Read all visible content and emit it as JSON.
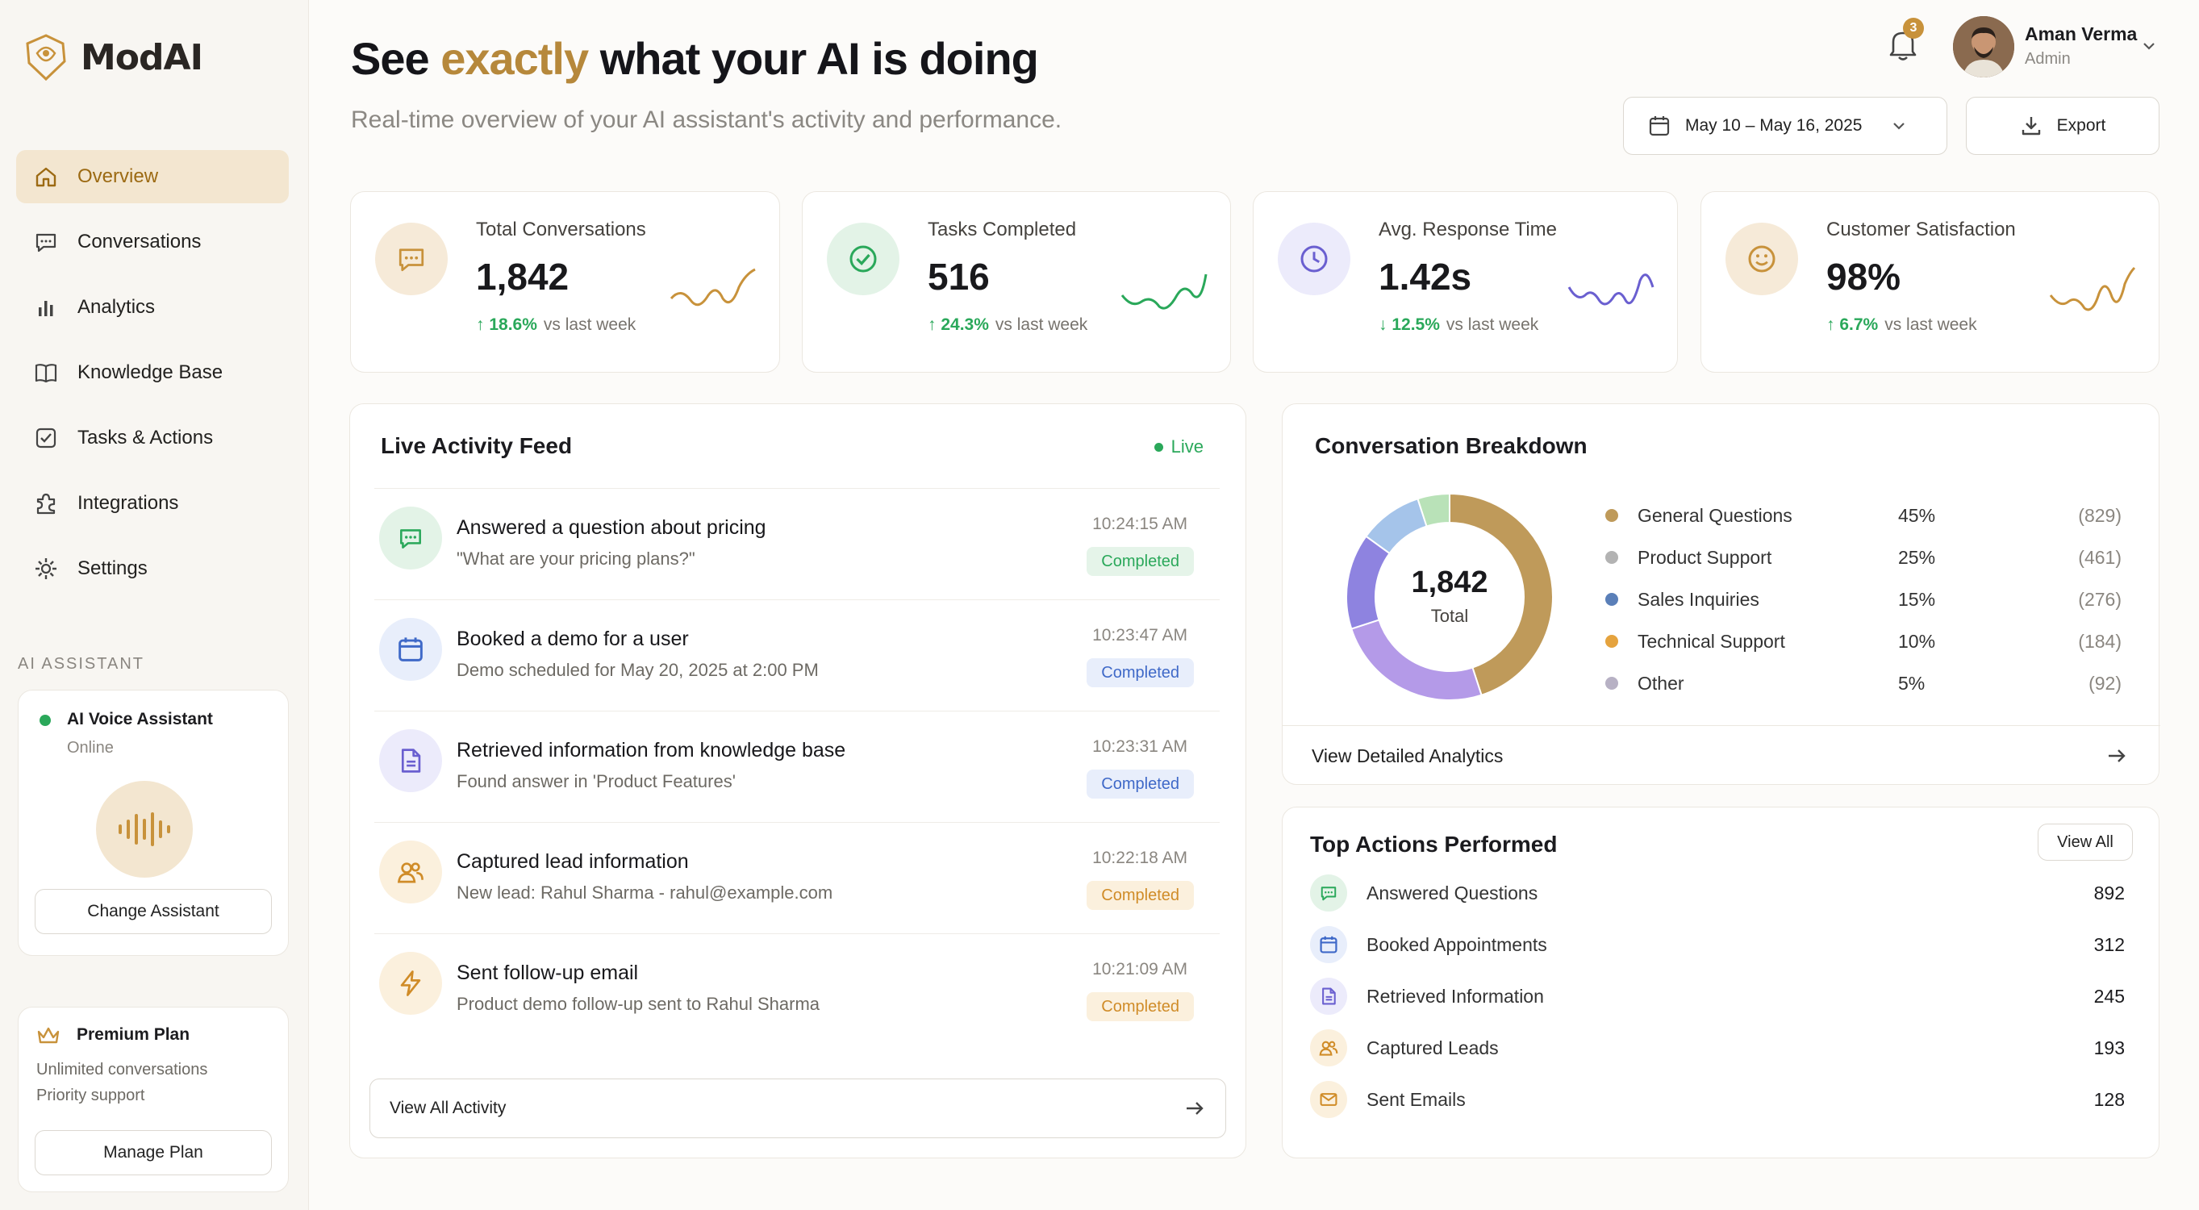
{
  "app": {
    "name": "ModAI"
  },
  "sidebar": {
    "items": [
      {
        "label": "Overview"
      },
      {
        "label": "Conversations"
      },
      {
        "label": "Analytics"
      },
      {
        "label": "Knowledge Base"
      },
      {
        "label": "Tasks & Actions"
      },
      {
        "label": "Integrations"
      },
      {
        "label": "Settings"
      }
    ],
    "active": "Overview",
    "section_title": "AI ASSISTANT",
    "assistant": {
      "name": "AI Voice Assistant",
      "status": "Online",
      "change_label": "Change Assistant"
    },
    "plan": {
      "name": "Premium Plan",
      "features": [
        "Unlimited conversations",
        "Priority support"
      ],
      "manage_label": "Manage Plan"
    }
  },
  "header": {
    "title_before": "See ",
    "title_accent": "exactly",
    "title_after": " what your AI is doing",
    "subtitle": "Real-time overview of your AI assistant's activity and performance.",
    "notifications": "3",
    "user": {
      "name": "Aman Verma",
      "role": "Admin"
    },
    "date_range": "May 10 – May 16, 2025",
    "export_label": "Export"
  },
  "stats": [
    {
      "label": "Total Conversations",
      "value": "1,842",
      "change": "18.6%",
      "direction": "up",
      "vs": "vs last week",
      "color": "#c8923b"
    },
    {
      "label": "Tasks Completed",
      "value": "516",
      "change": "24.3%",
      "direction": "up",
      "vs": "vs last week",
      "color": "#2aa85a"
    },
    {
      "label": "Avg. Response Time",
      "value": "1.42s",
      "change": "12.5%",
      "direction": "down",
      "vs": "vs last week",
      "color": "#6a5fd0"
    },
    {
      "label": "Customer Satisfaction",
      "value": "98%",
      "change": "6.7%",
      "direction": "up",
      "vs": "vs last week",
      "color": "#c8923b"
    }
  ],
  "feed": {
    "title": "Live Activity Feed",
    "live_label": "Live",
    "items": [
      {
        "title": "Answered a question about pricing",
        "desc": "\"What are your pricing plans?\"",
        "time": "10:24:15 AM",
        "status": "Completed",
        "icon": "chat-icon"
      },
      {
        "title": "Booked a demo for a user",
        "desc": "Demo scheduled for May 20, 2025 at 2:00 PM",
        "time": "10:23:47 AM",
        "status": "Completed",
        "icon": "calendar-icon"
      },
      {
        "title": "Retrieved information from knowledge base",
        "desc": "Found answer in 'Product Features'",
        "time": "10:23:31 AM",
        "status": "Completed",
        "icon": "document-icon"
      },
      {
        "title": "Captured lead information",
        "desc": "New lead: Rahul Sharma - rahul@example.com",
        "time": "10:22:18 AM",
        "status": "Completed",
        "icon": "users-icon"
      },
      {
        "title": "Sent follow-up email",
        "desc": "Product demo follow-up sent to Rahul Sharma",
        "time": "10:21:09 AM",
        "status": "Completed",
        "icon": "bolt-icon"
      }
    ],
    "view_all_label": "View All Activity"
  },
  "breakdown": {
    "title": "Conversation Breakdown",
    "total": "1,842",
    "total_label": "Total",
    "view_label": "View Detailed Analytics"
  },
  "chart_data": {
    "type": "pie",
    "categories": [
      "General Questions",
      "Product Support",
      "Sales Inquiries",
      "Technical Support",
      "Other"
    ],
    "values": [
      45,
      25,
      15,
      10,
      5
    ],
    "counts": [
      829,
      461,
      276,
      184,
      92
    ],
    "percent_labels": [
      "45%",
      "25%",
      "15%",
      "10%",
      "5%"
    ],
    "count_labels": [
      "(829)",
      "(461)",
      "(276)",
      "(184)",
      "(92)"
    ],
    "legend_colors": [
      "#bf9a5a",
      "#b3b3b3",
      "#5a7fb8",
      "#e5a33e",
      "#b7b1c4"
    ],
    "slice_colors": [
      "#bf9a5a",
      "#b49ae8",
      "#8e83e0",
      "#a5c4ea",
      "#b9e2b8",
      "#c8c8c8"
    ]
  },
  "actions": {
    "title": "Top Actions Performed",
    "view_all_label": "View All",
    "items": [
      {
        "name": "Answered Questions",
        "value": "892",
        "icon": "chat-icon"
      },
      {
        "name": "Booked Appointments",
        "value": "312",
        "icon": "calendar-icon"
      },
      {
        "name": "Retrieved Information",
        "value": "245",
        "icon": "document-icon"
      },
      {
        "name": "Captured Leads",
        "value": "193",
        "icon": "users-icon"
      },
      {
        "name": "Sent Emails",
        "value": "128",
        "icon": "mail-icon"
      }
    ]
  }
}
